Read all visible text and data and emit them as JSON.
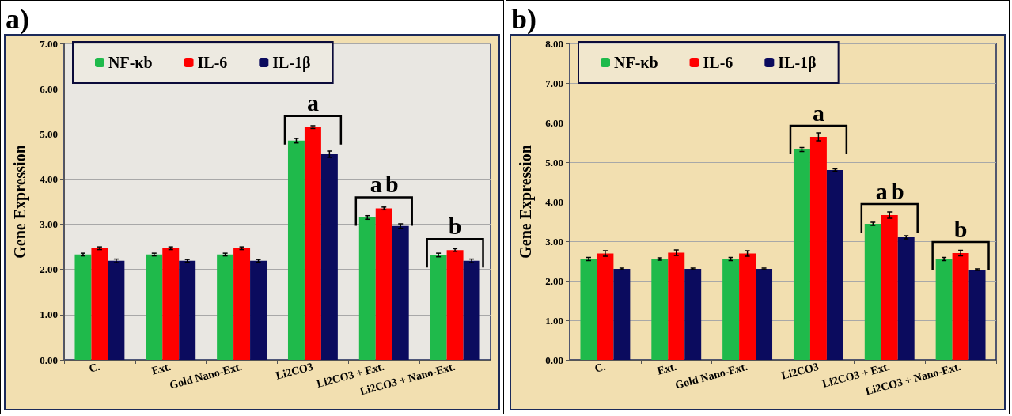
{
  "chart_data": [
    {
      "type": "bar",
      "title": "a)",
      "ylabel": "Gene Expression",
      "categories": [
        "C.",
        "Ext.",
        "Gold Nano-Ext.",
        "Li2CO3",
        "Li2CO3 + Ext.",
        "Li2CO3 + Nano-Ext."
      ],
      "series": [
        {
          "name": "NF-κb",
          "color": "#1fba4b",
          "values": [
            2.33,
            2.33,
            2.33,
            4.85,
            3.15,
            2.32
          ],
          "errors": [
            0.03,
            0.03,
            0.03,
            0.05,
            0.04,
            0.04
          ]
        },
        {
          "name": "IL-6",
          "color": "#ff0000",
          "values": [
            2.47,
            2.47,
            2.47,
            5.15,
            3.35,
            2.43
          ],
          "errors": [
            0.03,
            0.03,
            0.03,
            0.03,
            0.03,
            0.03
          ]
        },
        {
          "name": "IL-1β",
          "color": "#0b0b5e",
          "values": [
            2.19,
            2.19,
            2.19,
            4.55,
            2.96,
            2.19
          ],
          "errors": [
            0.04,
            0.03,
            0.03,
            0.07,
            0.05,
            0.04
          ]
        }
      ],
      "ylim": [
        0,
        7
      ],
      "yticks": [
        {
          "value": 0,
          "label": "0.00"
        },
        {
          "value": 1,
          "label": "1.00"
        },
        {
          "value": 2,
          "label": "2.00"
        },
        {
          "value": 3,
          "label": "3.00"
        },
        {
          "value": 4,
          "label": "4.00"
        },
        {
          "value": 5,
          "label": "5.00"
        },
        {
          "value": 6,
          "label": "6.00"
        },
        {
          "value": 7,
          "label": "7.00"
        }
      ],
      "grid": "y",
      "legend": "top left",
      "annotations": [
        {
          "text": "a",
          "x": "Li2CO3",
          "y": 5.15
        },
        {
          "text": "a",
          "x": "Li2CO3 + Ext.",
          "y": 3.35
        },
        {
          "text": "b",
          "x": "Li2CO3 + Ext.",
          "y": 3.35
        },
        {
          "text": "b",
          "x": "Li2CO3 + Nano-Ext.",
          "y": 2.43
        }
      ]
    },
    {
      "type": "bar",
      "title": "b)",
      "ylabel": "Gene Expression",
      "categories": [
        "C.",
        "Ext.",
        "Gold Nano-Ext.",
        "Li2CO3",
        "Li2CO3 + Ext.",
        "Li2CO3 + Nano-Ext."
      ],
      "series": [
        {
          "name": "NF-κb",
          "color": "#1fba4b",
          "values": [
            2.55,
            2.55,
            2.55,
            5.32,
            3.44,
            2.55
          ],
          "errors": [
            0.04,
            0.03,
            0.04,
            0.05,
            0.04,
            0.04
          ]
        },
        {
          "name": "IL-6",
          "color": "#ff0000",
          "values": [
            2.69,
            2.71,
            2.69,
            5.64,
            3.66,
            2.7
          ],
          "errors": [
            0.07,
            0.07,
            0.07,
            0.1,
            0.08,
            0.07
          ]
        },
        {
          "name": "IL-1β",
          "color": "#0b0b5e",
          "values": [
            2.3,
            2.3,
            2.3,
            4.8,
            3.1,
            2.28
          ],
          "errors": [
            0.02,
            0.02,
            0.02,
            0.03,
            0.04,
            0.02
          ]
        }
      ],
      "ylim": [
        0,
        8
      ],
      "yticks": [
        {
          "value": 0,
          "label": "0.00"
        },
        {
          "value": 1,
          "label": "1.00"
        },
        {
          "value": 2,
          "label": "2.00"
        },
        {
          "value": 3,
          "label": "3.00"
        },
        {
          "value": 4,
          "label": "4.00"
        },
        {
          "value": 5,
          "label": "5.00"
        },
        {
          "value": 6,
          "label": "6.00"
        },
        {
          "value": 7,
          "label": "7.00"
        },
        {
          "value": 8,
          "label": "8.00"
        }
      ],
      "grid": "y",
      "legend": "top left",
      "annotations": [
        {
          "text": "a",
          "x": "Li2CO3",
          "y": 5.64
        },
        {
          "text": "a",
          "x": "Li2CO3 + Ext.",
          "y": 3.66
        },
        {
          "text": "b",
          "x": "Li2CO3 + Ext.",
          "y": 3.66
        },
        {
          "text": "b",
          "x": "Li2CO3 + Nano-Ext.",
          "y": 2.7
        }
      ]
    }
  ]
}
